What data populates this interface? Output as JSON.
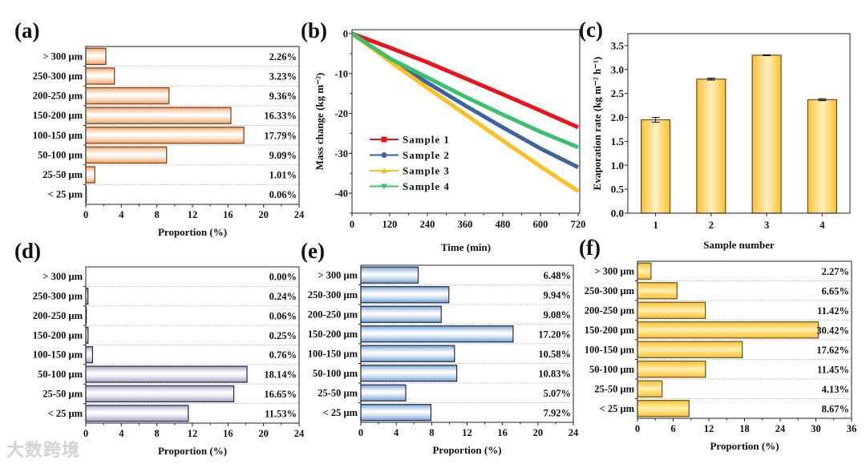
{
  "watermark": "大数跨境",
  "chart_data": [
    {
      "id": "a",
      "panel_label": "(a)",
      "type": "bar",
      "orientation": "horizontal",
      "categories": [
        "> 300 μm",
        "250-300 μm",
        "200-250 μm",
        "150-200 μm",
        "100-150 μm",
        "50-100 μm",
        "25-50 μm",
        "< 25 μm"
      ],
      "values": [
        2.26,
        3.23,
        9.36,
        16.33,
        17.79,
        9.09,
        1.01,
        0.06
      ],
      "value_labels": [
        "2.26%",
        "3.23%",
        "9.36%",
        "16.33%",
        "17.79%",
        "9.09%",
        "1.01%",
        "0.06%"
      ],
      "xlabel": "Proportion (%)",
      "xlim": [
        0,
        24
      ],
      "xticks": [
        0,
        4,
        8,
        12,
        16,
        20,
        24
      ],
      "color": "#f0a060",
      "edge": "#7a3a10",
      "grid": true
    },
    {
      "id": "b",
      "panel_label": "(b)",
      "type": "line",
      "x": [
        0,
        120,
        240,
        360,
        480,
        600,
        720
      ],
      "series": [
        {
          "name": "Sample 1",
          "color": "#e8141c",
          "marker": "square",
          "values": [
            0,
            -3.5,
            -7.2,
            -11.2,
            -15.2,
            -19.3,
            -23.5
          ]
        },
        {
          "name": "Sample 2",
          "color": "#3a64a0",
          "marker": "circle",
          "values": [
            0,
            -6.5,
            -12.3,
            -18,
            -23.5,
            -28.8,
            -33.5
          ]
        },
        {
          "name": "Sample 3",
          "color": "#fcc020",
          "marker": "triangle-up",
          "values": [
            0,
            -6.9,
            -13.6,
            -20.2,
            -26.8,
            -33.3,
            -39.5
          ]
        },
        {
          "name": "Sample 4",
          "color": "#3cc070",
          "marker": "triangle-down",
          "values": [
            0,
            -6.2,
            -11,
            -15.8,
            -20.3,
            -24.6,
            -28.5
          ]
        }
      ],
      "xlabel": "Time (min)",
      "ylabel": "Mass change (kg m⁻²)",
      "xlim": [
        0,
        725
      ],
      "ylim": [
        -45,
        1
      ],
      "xticks": [
        0,
        120,
        240,
        360,
        480,
        600,
        720
      ],
      "yticks": [
        0,
        -10,
        -20,
        -30,
        -40
      ],
      "legend": "bottom-left"
    },
    {
      "id": "c",
      "panel_label": "(c)",
      "type": "bar",
      "categories": [
        "1",
        "2",
        "3",
        "4"
      ],
      "values": [
        1.95,
        2.8,
        3.3,
        2.37
      ],
      "errors": [
        0.05,
        0.02,
        0.01,
        0.02
      ],
      "xlabel": "Sample number",
      "ylabel": "Evaporation rate (kg m⁻² h⁻¹)",
      "ylim": [
        0,
        3.75
      ],
      "yticks": [
        "0.0",
        "0.5",
        "1.0",
        "1.5",
        "2.0",
        "2.5",
        "3.0",
        "3.5"
      ],
      "color": "#fcc840",
      "edge": "#6a5020"
    },
    {
      "id": "d",
      "panel_label": "(d)",
      "type": "bar",
      "orientation": "horizontal",
      "categories": [
        "> 300 μm",
        "250-300 μm",
        "200-250 μm",
        "150-200 μm",
        "100-150 μm",
        "50-100 μm",
        "25-50 μm",
        "< 25 μm"
      ],
      "values": [
        0.0,
        0.24,
        0.06,
        0.25,
        0.76,
        18.14,
        16.65,
        11.53
      ],
      "value_labels": [
        "0.00%",
        "0.24%",
        "0.06%",
        "0.25%",
        "0.76%",
        "18.14%",
        "16.65%",
        "11.53%"
      ],
      "xlabel": "Proportion (%)",
      "xlim": [
        0,
        24
      ],
      "xticks": [
        0,
        4,
        8,
        12,
        16,
        20,
        24
      ],
      "color": "#9c9cc4",
      "edge": "#262640",
      "grid": true
    },
    {
      "id": "e",
      "panel_label": "(e)",
      "type": "bar",
      "orientation": "horizontal",
      "categories": [
        "> 300 μm",
        "250-300 μm",
        "200-250 μm",
        "150-200 μm",
        "100-150 μm",
        "50-100 μm",
        "25-50 μm",
        "< 25 μm"
      ],
      "values": [
        6.48,
        9.94,
        9.08,
        17.2,
        10.58,
        10.83,
        5.07,
        7.92
      ],
      "value_labels": [
        "6.48%",
        "9.94%",
        "9.08%",
        "17.20%",
        "10.58%",
        "10.83%",
        "5.07%",
        "7.92%"
      ],
      "xlabel": "Proportion (%)",
      "xlim": [
        0,
        24
      ],
      "xticks": [
        0,
        4,
        8,
        12,
        16,
        20,
        24
      ],
      "color": "#6a9ad0",
      "edge": "#1c2c48",
      "grid": true
    },
    {
      "id": "f",
      "panel_label": "(f)",
      "type": "bar",
      "orientation": "horizontal",
      "categories": [
        "> 300 μm",
        "250-300 μm",
        "200-250 μm",
        "150-200 μm",
        "100-150 μm",
        "50-100 μm",
        "25-50 μm",
        "< 25 μm"
      ],
      "values": [
        2.27,
        6.65,
        11.42,
        30.42,
        17.62,
        11.45,
        4.13,
        8.67
      ],
      "value_labels": [
        "2.27%",
        "6.65%",
        "11.42%",
        "30.42%",
        "17.62%",
        "11.45%",
        "4.13%",
        "8.67%"
      ],
      "xlabel": "Proportion (%)",
      "xlim": [
        0,
        36
      ],
      "xticks": [
        0,
        6,
        12,
        18,
        24,
        30,
        36
      ],
      "color": "#fcc840",
      "edge": "#6a5020",
      "grid": true
    }
  ]
}
